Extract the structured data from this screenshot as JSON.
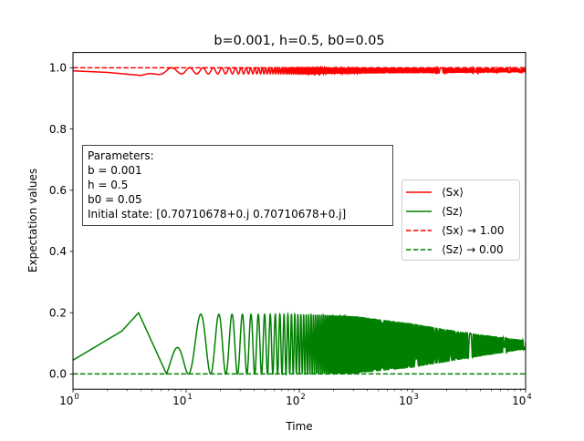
{
  "chart_data": {
    "type": "line",
    "title": "b=0.001, h=0.5, b0=0.05",
    "xlabel": "Time",
    "ylabel": "Expectation values",
    "xscale": "log",
    "xlim": [
      1,
      10000
    ],
    "ylim": [
      -0.05,
      1.05
    ],
    "grid": false,
    "legend_placement": "center-right",
    "x_ticks": [
      {
        "base": "10",
        "exp": "0"
      },
      {
        "base": "10",
        "exp": "1"
      },
      {
        "base": "10",
        "exp": "2"
      },
      {
        "base": "10",
        "exp": "3"
      },
      {
        "base": "10",
        "exp": "4"
      }
    ],
    "y_ticks": [
      "0.0",
      "0.2",
      "0.4",
      "0.6",
      "0.8",
      "1.0"
    ],
    "series": [
      {
        "name": "⟨Sx⟩",
        "color": "#ff0000",
        "style": "solid",
        "shape": "oscillating, dipping below 1.0",
        "envelope": [
          [
            1,
            0.99,
            0.99
          ],
          [
            2,
            0.985,
            0.985
          ],
          [
            4,
            0.975,
            0.975
          ],
          [
            7,
            0.98,
            1.0
          ],
          [
            20,
            0.98,
            1.0
          ],
          [
            100,
            0.98,
            1.0
          ],
          [
            1000,
            0.982,
            1.0
          ],
          [
            10000,
            0.985,
            0.998
          ]
        ]
      },
      {
        "name": "⟨Sz⟩",
        "color": "#008000",
        "style": "solid",
        "shape": "oscillating, period shrinking with time",
        "envelope": [
          [
            1,
            0.045,
            0.045
          ],
          [
            2.7,
            0.14,
            0.14
          ],
          [
            3.8,
            0.2,
            0.2
          ],
          [
            6.7,
            0.0,
            0.0
          ],
          [
            10,
            0.0,
            0.195
          ],
          [
            100,
            0.0,
            0.195
          ],
          [
            300,
            0.0,
            0.19
          ],
          [
            1000,
            0.02,
            0.165
          ],
          [
            3000,
            0.05,
            0.135
          ],
          [
            10000,
            0.08,
            0.11
          ]
        ]
      },
      {
        "name": "⟨Sx⟩ → 1.00",
        "color": "#ff0000",
        "style": "dashed",
        "values": [
          [
            1,
            1.0
          ],
          [
            10000,
            1.0
          ]
        ]
      },
      {
        "name": "⟨Sz⟩ → 0.00",
        "color": "#008000",
        "style": "dashed",
        "values": [
          [
            1,
            0.0
          ],
          [
            10000,
            0.0
          ]
        ]
      }
    ],
    "annotation": {
      "lines": [
        "Parameters:",
        "b = 0.001",
        "h = 0.5",
        "b0 = 0.05",
        "Initial state: [0.70710678+0.j 0.70710678+0.j]"
      ]
    }
  }
}
